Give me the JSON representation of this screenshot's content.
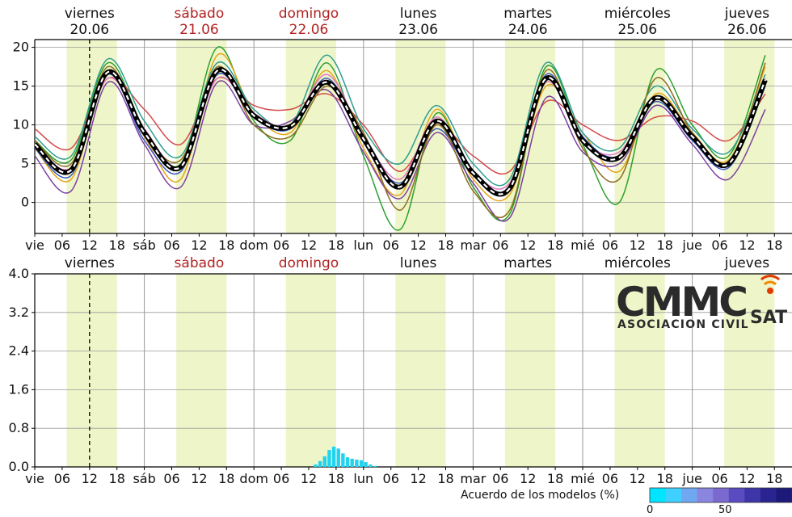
{
  "days": [
    {
      "name": "viernes",
      "date": "20.06",
      "weekend": false
    },
    {
      "name": "sábado",
      "date": "21.06",
      "weekend": true
    },
    {
      "name": "domingo",
      "date": "22.06",
      "weekend": true
    },
    {
      "name": "lunes",
      "date": "23.06",
      "weekend": false
    },
    {
      "name": "martes",
      "date": "24.06",
      "weekend": false
    },
    {
      "name": "miércoles",
      "date": "25.06",
      "weekend": false
    },
    {
      "name": "jueves",
      "date": "26.06",
      "weekend": false
    }
  ],
  "x_tick_labels": [
    "vie",
    "06",
    "12",
    "18",
    "sáb",
    "06",
    "12",
    "18",
    "dom",
    "06",
    "12",
    "18",
    "lun",
    "06",
    "12",
    "18",
    "mar",
    "06",
    "12",
    "18",
    "mié",
    "06",
    "12",
    "18",
    "jue",
    "06",
    "12",
    "18"
  ],
  "logo": {
    "text_main": "CMMC",
    "text_sub": "SAT",
    "tagline": "ASOCIACION CIVIL"
  },
  "colors": {
    "daylight_band": "#eef5c8",
    "mean_line": "#000000",
    "precip": "#22d3f0"
  },
  "chart_data": [
    {
      "type": "line",
      "x_unit": "hours since viernes 00:00",
      "ylim": [
        -4,
        21
      ],
      "yticks": [
        0,
        5,
        10,
        15,
        20
      ],
      "ylabel": "",
      "grid": true,
      "now_marker_hour": 12,
      "mean": {
        "x": [
          0,
          8,
          16,
          24,
          32,
          40,
          48,
          56,
          64,
          72,
          80,
          88,
          96,
          104,
          112,
          120,
          128,
          136,
          144,
          152,
          160
        ],
        "y": [
          7.5,
          4.2,
          16.8,
          9.0,
          4.6,
          17.0,
          11.2,
          9.8,
          15.5,
          8.2,
          2.0,
          10.5,
          3.8,
          1.8,
          16.0,
          8.0,
          5.8,
          13.5,
          8.5,
          5.0,
          15.8
        ]
      },
      "members": [
        {
          "x": [
            0,
            8,
            16,
            24,
            32,
            40,
            48,
            56,
            64,
            72,
            80,
            88,
            96,
            104,
            112,
            120,
            128,
            136,
            144,
            152,
            160
          ],
          "y": [
            8.0,
            5.5,
            18.0,
            9.5,
            5.0,
            20.0,
            10.5,
            8.0,
            18.0,
            6.0,
            -3.5,
            11.5,
            2.0,
            -1.5,
            17.5,
            7.5,
            0.0,
            17.0,
            10.0,
            6.0,
            19.0
          ],
          "color": "#2ca02c"
        },
        {
          "x": [
            0,
            8,
            16,
            24,
            32,
            40,
            48,
            56,
            64,
            72,
            80,
            88,
            96,
            104,
            112,
            120,
            128,
            136,
            144,
            152,
            160
          ],
          "y": [
            7.0,
            3.0,
            17.0,
            8.5,
            3.0,
            19.0,
            11.5,
            9.0,
            17.0,
            7.0,
            1.0,
            12.0,
            3.0,
            1.0,
            15.0,
            9.0,
            4.0,
            14.0,
            9.0,
            5.5,
            17.5
          ],
          "color": "#e5a51a"
        },
        {
          "x": [
            0,
            8,
            16,
            24,
            32,
            40,
            48,
            56,
            64,
            72,
            80,
            88,
            96,
            104,
            112,
            120,
            128,
            136,
            144,
            152,
            160
          ],
          "y": [
            9.5,
            7.0,
            16.0,
            12.0,
            7.5,
            16.0,
            12.5,
            12.0,
            14.0,
            10.0,
            4.0,
            10.0,
            6.0,
            4.0,
            13.0,
            10.0,
            8.0,
            11.0,
            10.5,
            8.0,
            14.0
          ],
          "color": "#d44a4a"
        },
        {
          "x": [
            0,
            8,
            16,
            24,
            32,
            40,
            48,
            56,
            64,
            72,
            80,
            88,
            96,
            104,
            112,
            120,
            128,
            136,
            144,
            152,
            160
          ],
          "y": [
            6.0,
            1.5,
            15.5,
            7.5,
            2.0,
            15.5,
            10.0,
            10.5,
            14.5,
            6.5,
            0.5,
            9.0,
            2.5,
            -2.0,
            13.5,
            6.5,
            5.0,
            12.5,
            7.5,
            3.0,
            12.0
          ],
          "color": "#7b3fa0"
        },
        {
          "x": [
            0,
            8,
            16,
            24,
            32,
            40,
            48,
            56,
            64,
            72,
            80,
            88,
            96,
            104,
            112,
            120,
            128,
            136,
            144,
            152,
            160
          ],
          "y": [
            8.5,
            6.0,
            18.5,
            10.5,
            6.0,
            18.0,
            12.0,
            10.0,
            19.0,
            9.5,
            5.0,
            12.5,
            5.0,
            3.0,
            18.0,
            9.0,
            7.0,
            15.0,
            9.5,
            6.5,
            16.5
          ],
          "color": "#2e9e8f"
        },
        {
          "x": [
            0,
            8,
            16,
            24,
            32,
            40,
            48,
            56,
            64,
            72,
            80,
            88,
            96,
            104,
            112,
            120,
            128,
            136,
            144,
            152,
            160
          ],
          "y": [
            7.0,
            3.5,
            16.5,
            8.0,
            4.0,
            16.5,
            11.0,
            9.5,
            16.0,
            8.0,
            2.5,
            9.5,
            3.5,
            2.0,
            16.5,
            8.5,
            6.0,
            13.0,
            8.0,
            4.5,
            15.0
          ],
          "color": "#3a5bbf"
        },
        {
          "x": [
            0,
            8,
            16,
            24,
            32,
            40,
            48,
            56,
            64,
            72,
            80,
            88,
            96,
            104,
            112,
            120,
            128,
            136,
            144,
            152,
            160
          ],
          "y": [
            8.0,
            5.0,
            17.5,
            9.0,
            5.5,
            17.5,
            10.0,
            8.5,
            15.0,
            9.0,
            -1.0,
            10.0,
            1.5,
            -1.0,
            17.0,
            7.0,
            3.0,
            16.0,
            9.0,
            5.0,
            18.0
          ],
          "color": "#8c6d1f"
        },
        {
          "x": [
            0,
            8,
            16,
            24,
            32,
            40,
            48,
            56,
            64,
            72,
            80,
            88,
            96,
            104,
            112,
            120,
            128,
            136,
            144,
            152,
            160
          ],
          "y": [
            7.5,
            4.5,
            16.0,
            9.5,
            4.5,
            16.0,
            11.5,
            10.0,
            16.5,
            8.5,
            3.0,
            11.0,
            4.0,
            2.5,
            15.5,
            8.0,
            6.5,
            13.5,
            8.5,
            5.0,
            16.0
          ],
          "color": "#e377c2"
        }
      ]
    },
    {
      "type": "bar",
      "x_unit": "hours since viernes 00:00",
      "ylim": [
        0,
        4.0
      ],
      "yticks": [
        "0.0",
        "0.8",
        "1.6",
        "2.4",
        "3.2",
        "4.0"
      ],
      "ylabel": "",
      "grid": true,
      "bars": [
        {
          "x": 61.5,
          "y": 0.05
        },
        {
          "x": 62.5,
          "y": 0.12
        },
        {
          "x": 63.5,
          "y": 0.22
        },
        {
          "x": 64.5,
          "y": 0.35
        },
        {
          "x": 65.5,
          "y": 0.42
        },
        {
          "x": 66.5,
          "y": 0.38
        },
        {
          "x": 67.5,
          "y": 0.28
        },
        {
          "x": 68.5,
          "y": 0.2
        },
        {
          "x": 69.5,
          "y": 0.17
        },
        {
          "x": 70.5,
          "y": 0.15
        },
        {
          "x": 71.5,
          "y": 0.14
        },
        {
          "x": 72.5,
          "y": 0.1
        },
        {
          "x": 73.5,
          "y": 0.05
        },
        {
          "x": 74.5,
          "y": 0.02
        }
      ]
    }
  ],
  "colorbar": {
    "title": "Acuerdo de los modelos (%)",
    "tick_labels": [
      "0",
      "50"
    ],
    "colors": [
      "#00e5ff",
      "#3fd0ff",
      "#6fa8f0",
      "#8a86e0",
      "#7a6ad0",
      "#5a4cc0",
      "#3d35a8",
      "#2a2490",
      "#1c1a78"
    ]
  }
}
